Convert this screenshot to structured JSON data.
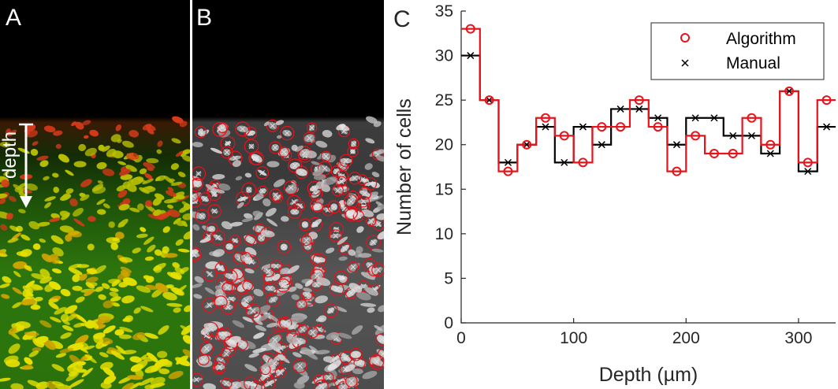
{
  "panel_labels": {
    "a": "A",
    "b": "B",
    "c": "C"
  },
  "depth_arrow_label": "depth",
  "colors": {
    "algorithm": "#e8131b",
    "manual": "#000000",
    "nucleus_yellow": "#e6e000",
    "tissue_green": "#2f7a0c",
    "edge_red": "#d63a1a"
  },
  "chart_data": {
    "type": "line",
    "style": "step",
    "title": "",
    "xlabel": "Depth (µm)",
    "ylabel": "Number of cells",
    "xlim": [
      0,
      333
    ],
    "ylim": [
      0,
      35
    ],
    "xticks": [
      0,
      100,
      200,
      300
    ],
    "yticks": [
      0,
      5,
      10,
      15,
      20,
      25,
      30,
      35
    ],
    "grid": false,
    "legend": "top-right",
    "bin_edges": [
      0,
      16.7,
      33.3,
      50,
      66.7,
      83.3,
      100,
      116.7,
      133.3,
      150,
      166.7,
      183.3,
      200,
      216.7,
      233.3,
      250,
      266.7,
      283.3,
      300,
      316.7,
      333
    ],
    "x": [
      8.3,
      25,
      41.7,
      58.3,
      75,
      91.7,
      108.3,
      125,
      141.7,
      158.3,
      175,
      191.7,
      208.3,
      225,
      241.7,
      258.3,
      275,
      291.7,
      308.3,
      325
    ],
    "series": [
      {
        "name": "Algorithm",
        "marker": "circle",
        "values": [
          33,
          25,
          17,
          20,
          23,
          21,
          18,
          22,
          22,
          25,
          22,
          17,
          21,
          19,
          19,
          23,
          20,
          26,
          18,
          25
        ]
      },
      {
        "name": "Manual",
        "marker": "x",
        "values": [
          30,
          25,
          18,
          20,
          22,
          18,
          22,
          20,
          24,
          24,
          23,
          20,
          23,
          23,
          21,
          21,
          19,
          26,
          17,
          22
        ]
      }
    ]
  }
}
